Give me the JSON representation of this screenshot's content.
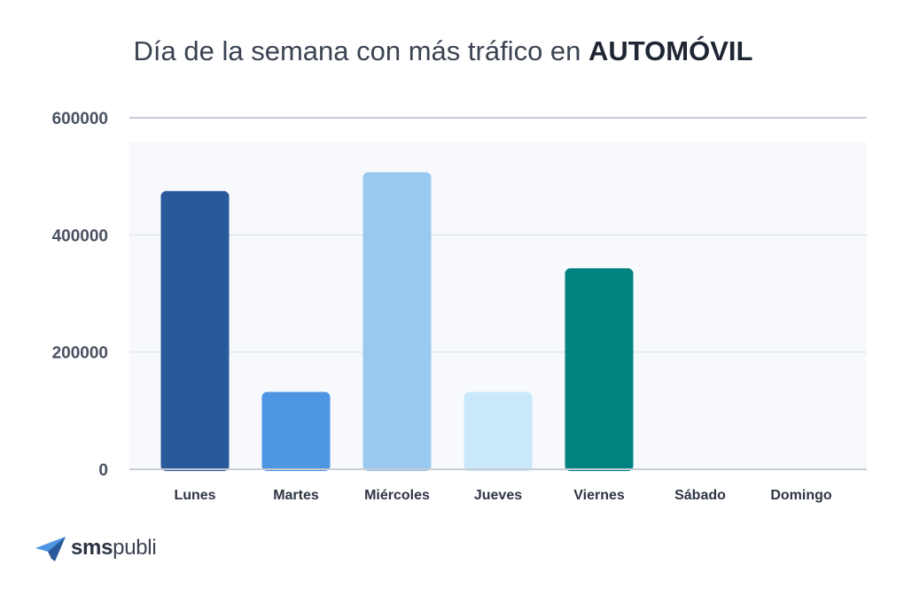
{
  "title": {
    "text_main": "Día de la semana con más tráfico en ",
    "text_bold": "AUTOMÓVIL"
  },
  "chart_data": {
    "type": "bar",
    "title": "Día de la semana con más tráfico en AUTOMÓVIL",
    "categories": [
      "Lunes",
      "Martes",
      "Miércoles",
      "Jueves",
      "Viernes",
      "Sábado",
      "Domingo"
    ],
    "values": [
      475000,
      132000,
      507000,
      132000,
      343000,
      0,
      0
    ],
    "colors": [
      "#28599a",
      "#4e95e2",
      "#99c9f1",
      "#c9e9fb",
      "#008380",
      "#cccccc",
      "#cccccc"
    ],
    "yticks": [
      0,
      200000,
      400000,
      600000
    ],
    "ylim": [
      0,
      600000
    ],
    "xlabel": "",
    "ylabel": "",
    "grid": true
  },
  "logo": {
    "part1": "sms",
    "part2": "publi"
  }
}
